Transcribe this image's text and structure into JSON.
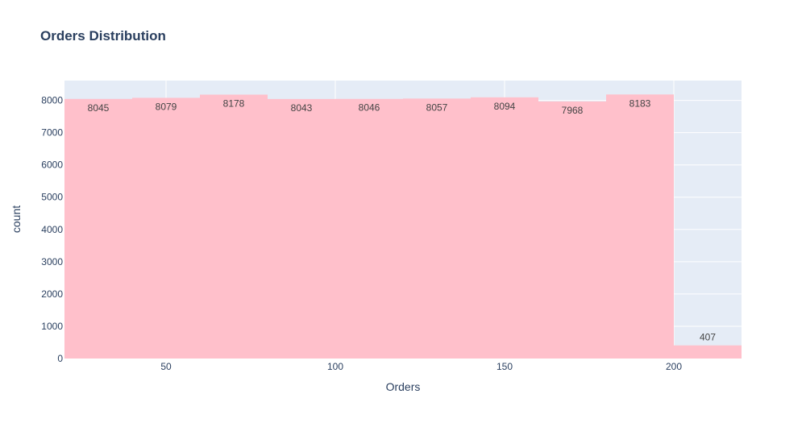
{
  "chart_data": {
    "type": "bar",
    "title": "Orders Distribution",
    "xlabel": "Orders",
    "ylabel": "count",
    "bins": [
      {
        "start": 20,
        "end": 40,
        "count": 8045
      },
      {
        "start": 40,
        "end": 60,
        "count": 8079
      },
      {
        "start": 60,
        "end": 80,
        "count": 8178
      },
      {
        "start": 80,
        "end": 100,
        "count": 8043
      },
      {
        "start": 100,
        "end": 120,
        "count": 8046
      },
      {
        "start": 120,
        "end": 140,
        "count": 8057
      },
      {
        "start": 140,
        "end": 160,
        "count": 8094
      },
      {
        "start": 160,
        "end": 180,
        "count": 7968
      },
      {
        "start": 180,
        "end": 200,
        "count": 8183
      },
      {
        "start": 200,
        "end": 220,
        "count": 407
      }
    ],
    "values": [
      8045,
      8079,
      8178,
      8043,
      8046,
      8057,
      8094,
      7968,
      8183,
      407
    ],
    "xlim": [
      20,
      220
    ],
    "ylim": [
      0,
      8614
    ],
    "x_ticks": [
      50,
      100,
      150,
      200
    ],
    "y_ticks": [
      0,
      1000,
      2000,
      3000,
      4000,
      5000,
      6000,
      7000,
      8000
    ],
    "grid": true,
    "legend": "none",
    "colors": {
      "bar": "#ffc0cb",
      "plot_background": "#e5ecf6",
      "grid": "#ffffff",
      "text": "#2a3f5f",
      "label": "#444444"
    }
  }
}
